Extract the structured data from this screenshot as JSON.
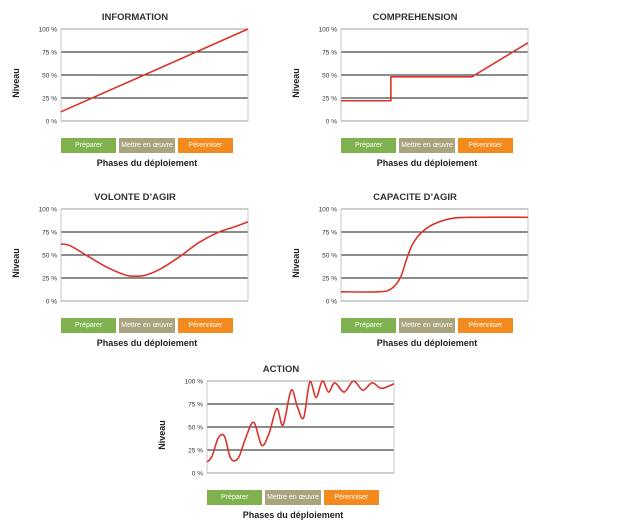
{
  "page": {
    "background": "#ffffff"
  },
  "chart_data": [
    {
      "type": "line",
      "title": "INFORMATION",
      "ylabel": "Niveau",
      "xlabel": "Phases du déploiement",
      "yticks": [
        "0 %",
        "25 %",
        "50 %",
        "75 %",
        "100 %"
      ],
      "ylim": [
        0,
        100
      ],
      "xlim": [
        0,
        3
      ],
      "phases": [
        {
          "label": "Préparer",
          "color": "#7fb24e"
        },
        {
          "label": "Mettre en œuvre",
          "color": "#a9a47e"
        },
        {
          "label": "Pérenniser",
          "color": "#f28a1e"
        }
      ],
      "grid": true,
      "line_color": "#d9342b",
      "series": [
        {
          "x": [
            0,
            3
          ],
          "y": [
            10,
            100
          ]
        }
      ]
    },
    {
      "type": "line",
      "title": "COMPREHENSION",
      "ylabel": "Niveau",
      "xlabel": "Phases du déploiement",
      "yticks": [
        "0 %",
        "25 %",
        "50 %",
        "75 %",
        "100 %"
      ],
      "ylim": [
        0,
        100
      ],
      "xlim": [
        0,
        3
      ],
      "phases": [
        {
          "label": "Préparer",
          "color": "#7fb24e"
        },
        {
          "label": "Mettre en œuvre",
          "color": "#a9a47e"
        },
        {
          "label": "Pérenniser",
          "color": "#f28a1e"
        }
      ],
      "grid": true,
      "line_color": "#d9342b",
      "series": [
        {
          "x": [
            0,
            0.8,
            0.8,
            2.1,
            3
          ],
          "y": [
            22,
            22,
            48,
            48,
            85
          ]
        }
      ]
    },
    {
      "type": "line",
      "title": "VOLONTE D’AGIR",
      "ylabel": "Niveau",
      "xlabel": "Phases du déploiement",
      "yticks": [
        "0 %",
        "25 %",
        "50 %",
        "75 %",
        "100 %"
      ],
      "ylim": [
        0,
        100
      ],
      "xlim": [
        0,
        3
      ],
      "phases": [
        {
          "label": "Préparer",
          "color": "#7fb24e"
        },
        {
          "label": "Mettre en œuvre",
          "color": "#a9a47e"
        },
        {
          "label": "Pérenniser",
          "color": "#f28a1e"
        }
      ],
      "grid": true,
      "line_color": "#d9342b",
      "series": [
        {
          "x": [
            0,
            0.15,
            0.4,
            0.7,
            1.0,
            1.15,
            1.35,
            1.6,
            1.9,
            2.2,
            2.5,
            2.8,
            3
          ],
          "y": [
            62,
            60,
            50,
            38,
            29,
            27,
            28,
            35,
            48,
            63,
            74,
            81,
            86
          ]
        }
      ]
    },
    {
      "type": "line",
      "title": "CAPACITE D’AGIR",
      "ylabel": "Niveau",
      "xlabel": "Phases du déploiement",
      "yticks": [
        "0 %",
        "25 %",
        "50 %",
        "75 %",
        "100 %"
      ],
      "ylim": [
        0,
        100
      ],
      "xlim": [
        0,
        3
      ],
      "phases": [
        {
          "label": "Préparer",
          "color": "#7fb24e"
        },
        {
          "label": "Mettre en œuvre",
          "color": "#a9a47e"
        },
        {
          "label": "Pérenniser",
          "color": "#f28a1e"
        }
      ],
      "grid": true,
      "line_color": "#d9342b",
      "series": [
        {
          "x": [
            0,
            0.6,
            0.8,
            0.95,
            1.05,
            1.15,
            1.3,
            1.5,
            1.8,
            2.2,
            3
          ],
          "y": [
            10,
            10,
            13,
            25,
            45,
            62,
            75,
            84,
            90,
            91,
            91
          ]
        }
      ]
    },
    {
      "type": "line",
      "title": "ACTION",
      "ylabel": "Niveau",
      "xlabel": "Phases du déploiement",
      "yticks": [
        "0 %",
        "25 %",
        "50 %",
        "75 %",
        "100 %"
      ],
      "ylim": [
        0,
        100
      ],
      "xlim": [
        0,
        3
      ],
      "phases": [
        {
          "label": "Préparer",
          "color": "#7fb24e"
        },
        {
          "label": "Mettre en œuvre",
          "color": "#a9a47e"
        },
        {
          "label": "Pérenniser",
          "color": "#f28a1e"
        }
      ],
      "grid": true,
      "line_color": "#d9342b",
      "series": [
        {
          "x": [
            0,
            0.08,
            0.18,
            0.28,
            0.38,
            0.5,
            0.62,
            0.75,
            0.88,
            1.0,
            1.12,
            1.22,
            1.35,
            1.45,
            1.55,
            1.65,
            1.75,
            1.85,
            1.95,
            2.05,
            2.2,
            2.35,
            2.5,
            2.65,
            2.8,
            3
          ],
          "y": [
            12,
            18,
            38,
            40,
            16,
            16,
            38,
            55,
            30,
            44,
            70,
            52,
            90,
            72,
            60,
            99,
            82,
            100,
            88,
            98,
            88,
            100,
            90,
            98,
            92,
            97
          ]
        }
      ]
    }
  ]
}
